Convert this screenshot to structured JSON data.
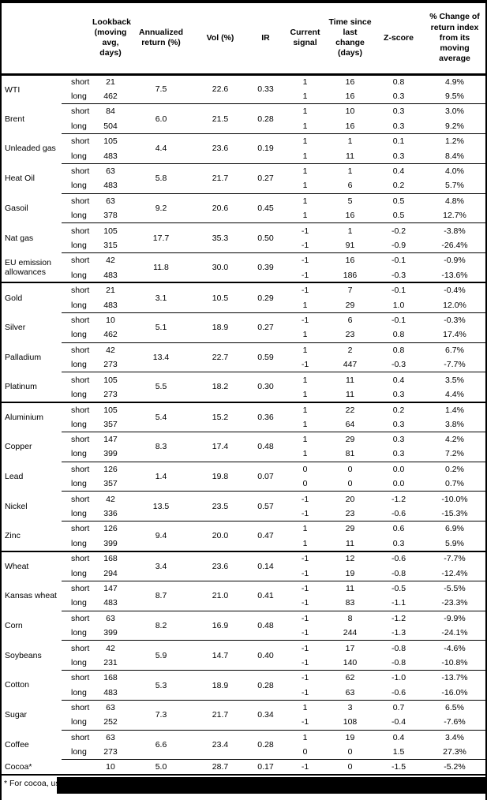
{
  "table": {
    "headers": [
      "",
      "",
      "Lookback (moving avg, days)",
      "Annualized return (%)",
      "Vol (%)",
      "IR",
      "Current signal",
      "Time since last change (days)",
      "Z-score",
      "% Change of return index from its moving average"
    ],
    "sections": [
      {
        "commodities": [
          {
            "name": "WTI",
            "annualized": "7.5",
            "vol": "22.6",
            "ir": "0.33",
            "rows": [
              {
                "horizon": "short",
                "lookback": "21",
                "signal": "1",
                "days_since_change": "16",
                "z_score": "0.8",
                "pct_change": "4.9%"
              },
              {
                "horizon": "long",
                "lookback": "462",
                "signal": "1",
                "days_since_change": "16",
                "z_score": "0.3",
                "pct_change": "9.5%"
              }
            ]
          },
          {
            "name": "Brent",
            "annualized": "6.0",
            "vol": "21.5",
            "ir": "0.28",
            "rows": [
              {
                "horizon": "short",
                "lookback": "84",
                "signal": "1",
                "days_since_change": "10",
                "z_score": "0.3",
                "pct_change": "3.0%"
              },
              {
                "horizon": "long",
                "lookback": "504",
                "signal": "1",
                "days_since_change": "16",
                "z_score": "0.3",
                "pct_change": "9.2%"
              }
            ]
          },
          {
            "name": "Unleaded gas",
            "annualized": "4.4",
            "vol": "23.6",
            "ir": "0.19",
            "rows": [
              {
                "horizon": "short",
                "lookback": "105",
                "signal": "1",
                "days_since_change": "1",
                "z_score": "0.1",
                "pct_change": "1.2%"
              },
              {
                "horizon": "long",
                "lookback": "483",
                "signal": "1",
                "days_since_change": "11",
                "z_score": "0.3",
                "pct_change": "8.4%"
              }
            ]
          },
          {
            "name": "Heat Oil",
            "annualized": "5.8",
            "vol": "21.7",
            "ir": "0.27",
            "rows": [
              {
                "horizon": "short",
                "lookback": "63",
                "signal": "1",
                "days_since_change": "1",
                "z_score": "0.4",
                "pct_change": "4.0%"
              },
              {
                "horizon": "long",
                "lookback": "483",
                "signal": "1",
                "days_since_change": "6",
                "z_score": "0.2",
                "pct_change": "5.7%"
              }
            ]
          },
          {
            "name": "Gasoil",
            "annualized": "9.2",
            "vol": "20.6",
            "ir": "0.45",
            "rows": [
              {
                "horizon": "short",
                "lookback": "63",
                "signal": "1",
                "days_since_change": "5",
                "z_score": "0.5",
                "pct_change": "4.8%"
              },
              {
                "horizon": "long",
                "lookback": "378",
                "signal": "1",
                "days_since_change": "16",
                "z_score": "0.5",
                "pct_change": "12.7%"
              }
            ]
          },
          {
            "name": "Nat gas",
            "annualized": "17.7",
            "vol": "35.3",
            "ir": "0.50",
            "rows": [
              {
                "horizon": "short",
                "lookback": "105",
                "signal": "-1",
                "days_since_change": "1",
                "z_score": "-0.2",
                "pct_change": "-3.8%"
              },
              {
                "horizon": "long",
                "lookback": "315",
                "signal": "-1",
                "days_since_change": "91",
                "z_score": "-0.9",
                "pct_change": "-26.4%"
              }
            ]
          },
          {
            "name": "EU emission allowances",
            "annualized": "11.8",
            "vol": "30.0",
            "ir": "0.39",
            "rows": [
              {
                "horizon": "short",
                "lookback": "42",
                "signal": "-1",
                "days_since_change": "16",
                "z_score": "-0.1",
                "pct_change": "-0.9%"
              },
              {
                "horizon": "long",
                "lookback": "483",
                "signal": "-1",
                "days_since_change": "186",
                "z_score": "-0.3",
                "pct_change": "-13.6%"
              }
            ]
          }
        ]
      },
      {
        "commodities": [
          {
            "name": "Gold",
            "annualized": "3.1",
            "vol": "10.5",
            "ir": "0.29",
            "rows": [
              {
                "horizon": "short",
                "lookback": "21",
                "signal": "-1",
                "days_since_change": "7",
                "z_score": "-0.1",
                "pct_change": "-0.4%"
              },
              {
                "horizon": "long",
                "lookback": "483",
                "signal": "1",
                "days_since_change": "29",
                "z_score": "1.0",
                "pct_change": "12.0%"
              }
            ]
          },
          {
            "name": "Silver",
            "annualized": "5.1",
            "vol": "18.9",
            "ir": "0.27",
            "rows": [
              {
                "horizon": "short",
                "lookback": "10",
                "signal": "-1",
                "days_since_change": "6",
                "z_score": "-0.1",
                "pct_change": "-0.3%"
              },
              {
                "horizon": "long",
                "lookback": "462",
                "signal": "1",
                "days_since_change": "23",
                "z_score": "0.8",
                "pct_change": "17.4%"
              }
            ]
          },
          {
            "name": "Palladium",
            "annualized": "13.4",
            "vol": "22.7",
            "ir": "0.59",
            "rows": [
              {
                "horizon": "short",
                "lookback": "42",
                "signal": "1",
                "days_since_change": "2",
                "z_score": "0.8",
                "pct_change": "6.7%"
              },
              {
                "horizon": "long",
                "lookback": "273",
                "signal": "-1",
                "days_since_change": "447",
                "z_score": "-0.3",
                "pct_change": "-7.7%"
              }
            ]
          },
          {
            "name": "Platinum",
            "annualized": "5.5",
            "vol": "18.2",
            "ir": "0.30",
            "rows": [
              {
                "horizon": "short",
                "lookback": "105",
                "signal": "1",
                "days_since_change": "11",
                "z_score": "0.4",
                "pct_change": "3.5%"
              },
              {
                "horizon": "long",
                "lookback": "273",
                "signal": "1",
                "days_since_change": "11",
                "z_score": "0.3",
                "pct_change": "4.4%"
              }
            ]
          }
        ]
      },
      {
        "commodities": [
          {
            "name": "Aluminium",
            "annualized": "5.4",
            "vol": "15.2",
            "ir": "0.36",
            "rows": [
              {
                "horizon": "short",
                "lookback": "105",
                "signal": "1",
                "days_since_change": "22",
                "z_score": "0.2",
                "pct_change": "1.4%"
              },
              {
                "horizon": "long",
                "lookback": "357",
                "signal": "1",
                "days_since_change": "64",
                "z_score": "0.3",
                "pct_change": "3.8%"
              }
            ]
          },
          {
            "name": "Copper",
            "annualized": "8.3",
            "vol": "17.4",
            "ir": "0.48",
            "rows": [
              {
                "horizon": "short",
                "lookback": "147",
                "signal": "1",
                "days_since_change": "29",
                "z_score": "0.3",
                "pct_change": "4.2%"
              },
              {
                "horizon": "long",
                "lookback": "399",
                "signal": "1",
                "days_since_change": "81",
                "z_score": "0.3",
                "pct_change": "7.2%"
              }
            ]
          },
          {
            "name": "Lead",
            "annualized": "1.4",
            "vol": "19.8",
            "ir": "0.07",
            "rows": [
              {
                "horizon": "short",
                "lookback": "126",
                "signal": "0",
                "days_since_change": "0",
                "z_score": "0.0",
                "pct_change": "0.2%"
              },
              {
                "horizon": "long",
                "lookback": "357",
                "signal": "0",
                "days_since_change": "0",
                "z_score": "0.0",
                "pct_change": "0.7%"
              }
            ]
          },
          {
            "name": "Nickel",
            "annualized": "13.5",
            "vol": "23.5",
            "ir": "0.57",
            "rows": [
              {
                "horizon": "short",
                "lookback": "42",
                "signal": "-1",
                "days_since_change": "20",
                "z_score": "-1.2",
                "pct_change": "-10.0%"
              },
              {
                "horizon": "long",
                "lookback": "336",
                "signal": "-1",
                "days_since_change": "23",
                "z_score": "-0.6",
                "pct_change": "-15.3%"
              }
            ]
          },
          {
            "name": "Zinc",
            "annualized": "9.4",
            "vol": "20.0",
            "ir": "0.47",
            "rows": [
              {
                "horizon": "short",
                "lookback": "126",
                "signal": "1",
                "days_since_change": "29",
                "z_score": "0.6",
                "pct_change": "6.9%"
              },
              {
                "horizon": "long",
                "lookback": "399",
                "signal": "1",
                "days_since_change": "11",
                "z_score": "0.3",
                "pct_change": "5.9%"
              }
            ]
          }
        ]
      },
      {
        "commodities": [
          {
            "name": "Wheat",
            "annualized": "3.4",
            "vol": "23.6",
            "ir": "0.14",
            "rows": [
              {
                "horizon": "short",
                "lookback": "168",
                "signal": "-1",
                "days_since_change": "12",
                "z_score": "-0.6",
                "pct_change": "-7.7%"
              },
              {
                "horizon": "long",
                "lookback": "294",
                "signal": "-1",
                "days_since_change": "19",
                "z_score": "-0.8",
                "pct_change": "-12.4%"
              }
            ]
          },
          {
            "name": "Kansas wheat",
            "annualized": "8.7",
            "vol": "21.0",
            "ir": "0.41",
            "rows": [
              {
                "horizon": "short",
                "lookback": "147",
                "signal": "-1",
                "days_since_change": "11",
                "z_score": "-0.5",
                "pct_change": "-5.5%"
              },
              {
                "horizon": "long",
                "lookback": "483",
                "signal": "-1",
                "days_since_change": "83",
                "z_score": "-1.1",
                "pct_change": "-23.3%"
              }
            ]
          },
          {
            "name": "Corn",
            "annualized": "8.2",
            "vol": "16.9",
            "ir": "0.48",
            "rows": [
              {
                "horizon": "short",
                "lookback": "63",
                "signal": "-1",
                "days_since_change": "8",
                "z_score": "-1.2",
                "pct_change": "-9.9%"
              },
              {
                "horizon": "long",
                "lookback": "399",
                "signal": "-1",
                "days_since_change": "244",
                "z_score": "-1.3",
                "pct_change": "-24.1%"
              }
            ]
          },
          {
            "name": "Soybeans",
            "annualized": "5.9",
            "vol": "14.7",
            "ir": "0.40",
            "rows": [
              {
                "horizon": "short",
                "lookback": "42",
                "signal": "-1",
                "days_since_change": "17",
                "z_score": "-0.8",
                "pct_change": "-4.6%"
              },
              {
                "horizon": "long",
                "lookback": "231",
                "signal": "-1",
                "days_since_change": "140",
                "z_score": "-0.8",
                "pct_change": "-10.8%"
              }
            ]
          },
          {
            "name": "Cotton",
            "annualized": "5.3",
            "vol": "18.9",
            "ir": "0.28",
            "rows": [
              {
                "horizon": "short",
                "lookback": "168",
                "signal": "-1",
                "days_since_change": "62",
                "z_score": "-1.0",
                "pct_change": "-13.7%"
              },
              {
                "horizon": "long",
                "lookback": "483",
                "signal": "-1",
                "days_since_change": "63",
                "z_score": "-0.6",
                "pct_change": "-16.0%"
              }
            ]
          },
          {
            "name": "Sugar",
            "annualized": "7.3",
            "vol": "21.7",
            "ir": "0.34",
            "rows": [
              {
                "horizon": "short",
                "lookback": "63",
                "signal": "1",
                "days_since_change": "3",
                "z_score": "0.7",
                "pct_change": "6.5%"
              },
              {
                "horizon": "long",
                "lookback": "252",
                "signal": "-1",
                "days_since_change": "108",
                "z_score": "-0.4",
                "pct_change": "-7.6%"
              }
            ]
          },
          {
            "name": "Coffee",
            "annualized": "6.6",
            "vol": "23.4",
            "ir": "0.28",
            "rows": [
              {
                "horizon": "short",
                "lookback": "63",
                "signal": "1",
                "days_since_change": "19",
                "z_score": "0.4",
                "pct_change": "3.4%"
              },
              {
                "horizon": "long",
                "lookback": "273",
                "signal": "0",
                "days_since_change": "0",
                "z_score": "1.5",
                "pct_change": "27.3%"
              }
            ]
          },
          {
            "name": "Cocoa*",
            "annualized": "5.0",
            "vol": "28.7",
            "ir": "0.17",
            "rows": [
              {
                "horizon": "",
                "lookback": "10",
                "signal": "-1",
                "days_since_change": "0",
                "z_score": "-1.5",
                "pct_change": "-5.2%"
              }
            ]
          }
        ]
      }
    ]
  },
  "footnote": "* For cocoa, uses c"
}
